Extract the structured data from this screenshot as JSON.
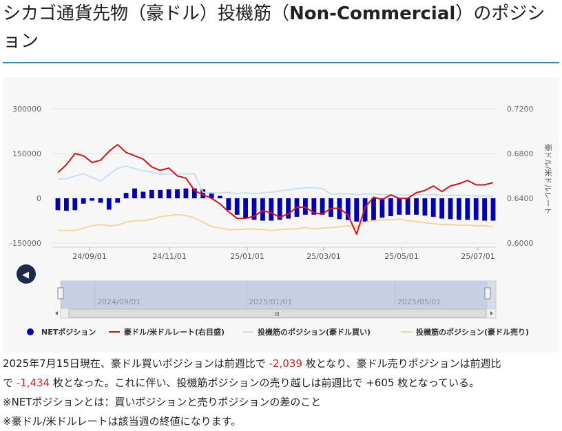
{
  "title": {
    "prefix": "シカゴ通貨先物（豪ドル）投機筋（",
    "bold": "Non-Commercial",
    "suffix": "）のポジション"
  },
  "chart_data": {
    "type": "bar+line",
    "left_axis": {
      "ticks": [
        "300000",
        "150000",
        "0",
        "-150000"
      ],
      "range": [
        -150000,
        300000
      ]
    },
    "right_axis": {
      "ticks": [
        "0.7200",
        "0.6800",
        "0.6400",
        "0.6000"
      ],
      "range": [
        0.6,
        0.72
      ],
      "label": "豪ドル/米ドルレート"
    },
    "x_ticks": [
      "24/09/01",
      "24/11/01",
      "25/01/01",
      "25/03/01",
      "25/05/01",
      "25/07/01"
    ],
    "navigator_ticks": [
      "2024/09/01",
      "2025/01/01",
      "2025/05/01"
    ],
    "legend": [
      {
        "label": "NETポジション",
        "color": "#0000bb",
        "marker": "circle"
      },
      {
        "label": "豪ドル/米ドルレート(右目盛)",
        "color": "#e01010",
        "marker": "line"
      },
      {
        "label": "投機筋のポジション(豪ドル買い)",
        "color": "#c7dff5",
        "marker": "line"
      },
      {
        "label": "投機筋のポジション(豪ドル売り)",
        "color": "#f8d49a",
        "marker": "line"
      }
    ],
    "series": [
      {
        "name": "NETポジション",
        "type": "bar",
        "values": [
          -40000,
          -42000,
          -40000,
          -18000,
          -8000,
          -15000,
          -38000,
          -15000,
          18000,
          33000,
          22000,
          28000,
          28000,
          30000,
          30000,
          33000,
          33000,
          30000,
          20000,
          8000,
          -40000,
          -55000,
          -68000,
          -72000,
          -75000,
          -75000,
          -72000,
          -68000,
          -62000,
          -55000,
          -55000,
          -55000,
          -62000,
          -70000,
          -73000,
          -78000,
          -78000,
          -75000,
          -65000,
          -60000,
          -55000,
          -55000,
          -55000,
          -58000,
          -62000,
          -68000,
          -70000,
          -72000,
          -72000,
          -73000,
          -75000,
          -75000
        ]
      },
      {
        "name": "豪ドル/米ドルレート(右目盛)",
        "type": "line",
        "values": [
          0.663,
          0.67,
          0.68,
          0.678,
          0.672,
          0.674,
          0.682,
          0.688,
          0.681,
          0.678,
          0.675,
          0.668,
          0.665,
          0.667,
          0.66,
          0.658,
          0.647,
          0.643,
          0.64,
          0.635,
          0.628,
          0.622,
          0.622,
          0.624,
          0.629,
          0.627,
          0.623,
          0.626,
          0.632,
          0.632,
          0.627,
          0.626,
          0.631,
          0.631,
          0.625,
          0.608,
          0.632,
          0.641,
          0.639,
          0.643,
          0.64,
          0.64,
          0.645,
          0.647,
          0.651,
          0.646,
          0.651,
          0.653,
          0.656,
          0.652,
          0.652,
          0.654
        ]
      },
      {
        "name": "投機筋のポジション(豪ドル買い)",
        "type": "line",
        "values": [
          65000,
          65000,
          75000,
          82000,
          70000,
          58000,
          80000,
          100000,
          108000,
          100000,
          92000,
          88000,
          80000,
          82000,
          82000,
          82000,
          82000,
          20000,
          18000,
          18000,
          20000,
          15000,
          18000,
          15000,
          18000,
          20000,
          25000,
          28000,
          32000,
          35000,
          35000,
          32000,
          15000,
          15000,
          15000,
          12000,
          15000,
          15000,
          12000,
          12000,
          12000,
          10000,
          12000,
          12000,
          12000,
          10000,
          10000,
          10000,
          10000,
          8000,
          8000,
          8000
        ]
      },
      {
        "name": "投機筋のポジション(豪ドル売り)",
        "type": "line",
        "values": [
          -108000,
          -108000,
          -108000,
          -100000,
          -92000,
          -88000,
          -92000,
          -90000,
          -80000,
          -75000,
          -75000,
          -70000,
          -62000,
          -58000,
          -55000,
          -58000,
          -65000,
          -80000,
          -95000,
          -100000,
          -105000,
          -105000,
          -103000,
          -103000,
          -105000,
          -108000,
          -105000,
          -103000,
          -102000,
          -98000,
          -103000,
          -100000,
          -98000,
          -95000,
          -92000,
          -95000,
          -80000,
          -75000,
          -72000,
          -72000,
          -70000,
          -75000,
          -78000,
          -82000,
          -85000,
          -88000,
          -88000,
          -90000,
          -90000,
          -92000,
          -92000,
          -95000
        ]
      }
    ]
  },
  "controls": {
    "prev_symbol": "◀",
    "scroll_grip": "III"
  },
  "description": {
    "line1_a": "2025年7月15日現在、豪ドル買いポジションは前週比で ",
    "line1_v1": "-2,039",
    "line1_b": " 枚となり、豪ドル売りポジションは前週比",
    "line2_a": "で ",
    "line2_v2": "-1,434",
    "line2_b": " 枚となった。これに伴い、投機筋ポジションの売り越しは前週比で +605 枚となっている。",
    "note1": "※NETポジションとは：買いポジションと売りポジションの差のこと",
    "note2": "※豪ドル/米ドルレートは該当週の終値になります。"
  }
}
